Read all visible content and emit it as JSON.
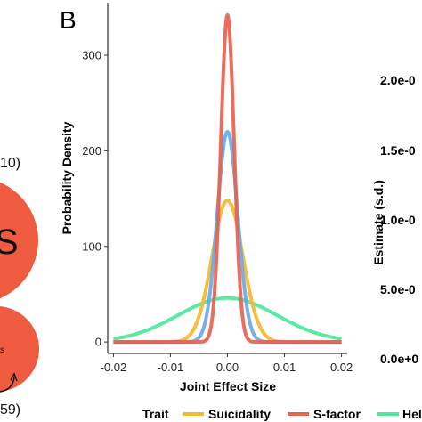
{
  "left_fragment": {
    "top_label": "10)",
    "big_circle_letter": "S",
    "small_circle_text": "s",
    "bottom_label": "59)",
    "circle_color": "#ee5b3f"
  },
  "chart_data": {
    "type": "line",
    "panel_letter": "B",
    "xlabel": "Joint Effect Size",
    "ylabel": "Probability Density",
    "xlim": [
      -0.021,
      0.021
    ],
    "ylim": [
      -12,
      355
    ],
    "x_ticks": [
      -0.02,
      -0.01,
      0.0,
      0.01,
      0.02
    ],
    "x_tick_labels": [
      "-0.02",
      "-0.01",
      "0.00",
      "0.01",
      "0.02"
    ],
    "y_ticks": [
      0,
      100,
      200,
      300
    ],
    "y_tick_labels": [
      "0",
      "100",
      "200",
      "300"
    ],
    "grid": false,
    "series": [
      {
        "name": "Helping",
        "color": "#4de89a",
        "peak": 46,
        "sd": 0.0087
      },
      {
        "name": "Suicidality",
        "color": "#f5b82e",
        "peak": 148,
        "sd": 0.0027
      },
      {
        "name": "",
        "color": "#6aa8e8",
        "peak": 220,
        "sd": 0.0018
      },
      {
        "name": "S-factor",
        "color": "#e8624e",
        "peak": 342,
        "sd": 0.00117
      }
    ],
    "legend": {
      "title": "Trait",
      "position": "bottom",
      "items": [
        {
          "label": "Suicidality",
          "color": "#f5b82e"
        },
        {
          "label": "S-factor",
          "color": "#e8624e"
        },
        {
          "label": "Hel",
          "color": "#4de89a"
        }
      ]
    }
  },
  "right_fragment": {
    "axis_title": "Estimate (s.d.)",
    "tick_labels": [
      "2.0e-0",
      "1.5e-0",
      "1.0e-0",
      "5.0e-0",
      "0.0e+0"
    ]
  }
}
